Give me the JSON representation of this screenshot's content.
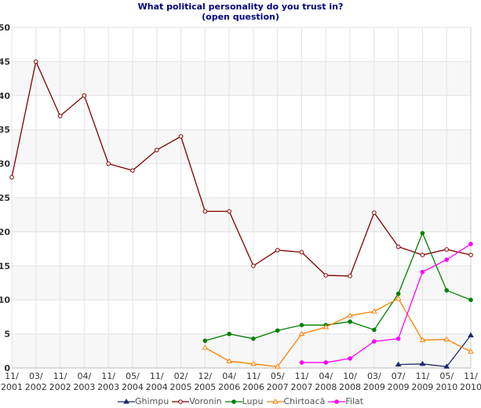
{
  "chart_data": {
    "type": "line",
    "title": "What political personality do you trust in?",
    "subtitle": "(open question)",
    "categories": [
      "11/ 2001",
      "03/ 2002",
      "11/ 2002",
      "04/ 2003",
      "11/ 2003",
      "05/ 2004",
      "11/ 2004",
      "02/ 2005",
      "12/ 2005",
      "04/ 2006",
      "11/ 2006",
      "05/ 2007",
      "11/ 2007",
      "04/ 2008",
      "10/ 2008",
      "03/ 2009",
      "07/ 2009",
      "11/ 2009",
      "05/ 2010",
      "11/ 2010"
    ],
    "ylim": [
      0,
      50
    ],
    "yticks": [
      0,
      5,
      10,
      15,
      20,
      25,
      30,
      35,
      40,
      45,
      50
    ],
    "grid": true,
    "legend": "bottom",
    "series": [
      {
        "name": "Ghimpu",
        "color": "#1f2a6e",
        "marker": "triangle-filled",
        "values": [
          null,
          null,
          null,
          null,
          null,
          null,
          null,
          null,
          null,
          null,
          null,
          null,
          null,
          null,
          null,
          null,
          0.5,
          0.6,
          0.2,
          4.8
        ]
      },
      {
        "name": "Voronin",
        "color": "#800000",
        "marker": "circle-open",
        "values": [
          28,
          45,
          37,
          40,
          30,
          29,
          32,
          34,
          23,
          23,
          15,
          17.3,
          17,
          13.6,
          13.5,
          22.8,
          17.8,
          16.6,
          17.4,
          16.6
        ]
      },
      {
        "name": "Lupu",
        "color": "#008000",
        "marker": "circle-filled",
        "values": [
          null,
          null,
          null,
          null,
          null,
          null,
          null,
          null,
          4,
          5,
          4.3,
          5.5,
          6.3,
          6.3,
          6.8,
          5.6,
          10.9,
          19.8,
          11.4,
          10
        ]
      },
      {
        "name": "Chirtoacă",
        "color": "#ff7f00",
        "marker": "triangle-open",
        "values": [
          null,
          null,
          null,
          null,
          null,
          null,
          null,
          null,
          3,
          1,
          0.6,
          0.2,
          5,
          6,
          7.7,
          8.3,
          10.2,
          4.1,
          4.2,
          2.4
        ]
      },
      {
        "name": "Filat",
        "color": "#ff00ff",
        "marker": "circle-filled",
        "values": [
          null,
          null,
          null,
          null,
          null,
          null,
          null,
          null,
          null,
          null,
          null,
          null,
          0.8,
          0.8,
          1.4,
          3.9,
          4.3,
          14.1,
          15.9,
          18.2
        ]
      }
    ]
  }
}
